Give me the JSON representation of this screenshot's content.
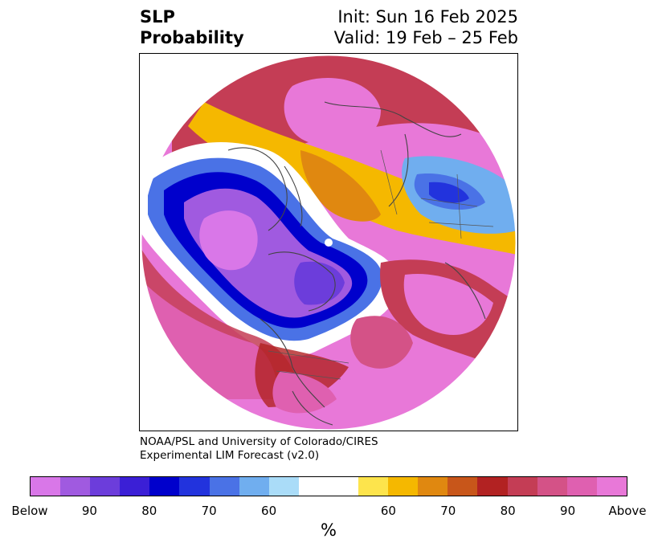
{
  "title": {
    "left_line1": "SLP",
    "left_line2": "Probability",
    "right_line1": "Init: Sun 16 Feb 2025",
    "right_line2": "Valid: 19 Feb – 25 Feb"
  },
  "credit": {
    "line1": "NOAA/PSL and University of Colorado/CIRES",
    "line2": "Experimental LIM Forecast (v2.0)"
  },
  "colorbar": {
    "colors": [
      "#d977e8",
      "#a05ae0",
      "#6c3ddb",
      "#3b1fd6",
      "#0000cc",
      "#2233dd",
      "#4a72e6",
      "#70aeef",
      "#aadcf8",
      "#ffffff",
      "#ffffff",
      "#fde44c",
      "#f5b800",
      "#e08810",
      "#c8561a",
      "#b22222",
      "#c43d55",
      "#d45287",
      "#df60b0",
      "#e878d8"
    ],
    "tick_labels": [
      "Below",
      "90",
      "80",
      "70",
      "60",
      "60",
      "70",
      "80",
      "90",
      "Above"
    ],
    "unit": "%"
  },
  "map": {
    "projection": "polar-stereographic",
    "pole_marker": "white-dot"
  }
}
